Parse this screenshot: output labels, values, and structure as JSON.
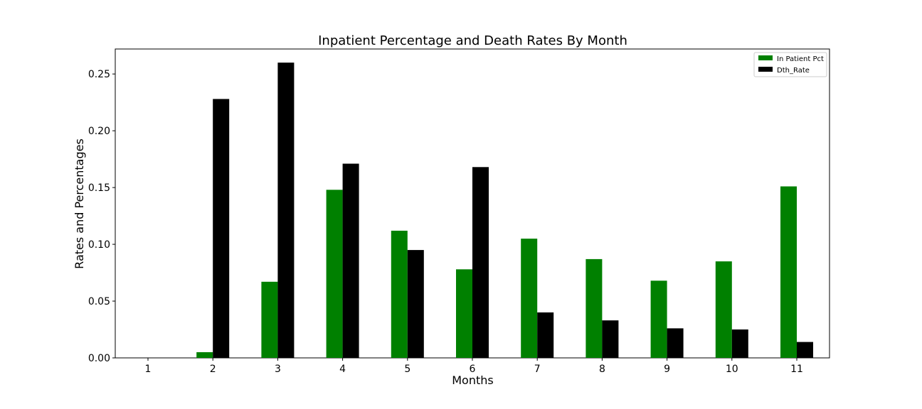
{
  "chart_data": {
    "type": "bar",
    "title": "Inpatient Percentage and Death Rates By Month",
    "xlabel": "Months",
    "ylabel": "Rates and Percentages",
    "categories": [
      "1",
      "2",
      "3",
      "4",
      "5",
      "6",
      "7",
      "8",
      "9",
      "10",
      "11"
    ],
    "ylim": [
      0,
      0.272
    ],
    "yticks": [
      "0.00",
      "0.05",
      "0.10",
      "0.15",
      "0.20",
      "0.25"
    ],
    "grid": false,
    "legend_position": "top-right",
    "series": [
      {
        "name": "In Patient Pct",
        "color": "#008000",
        "values": [
          0.0,
          0.005,
          0.067,
          0.148,
          0.112,
          0.078,
          0.105,
          0.087,
          0.068,
          0.085,
          0.151
        ]
      },
      {
        "name": "Dth_Rate",
        "color": "#000000",
        "values": [
          0.0,
          0.228,
          0.26,
          0.171,
          0.095,
          0.168,
          0.04,
          0.033,
          0.026,
          0.025,
          0.014
        ]
      }
    ]
  }
}
